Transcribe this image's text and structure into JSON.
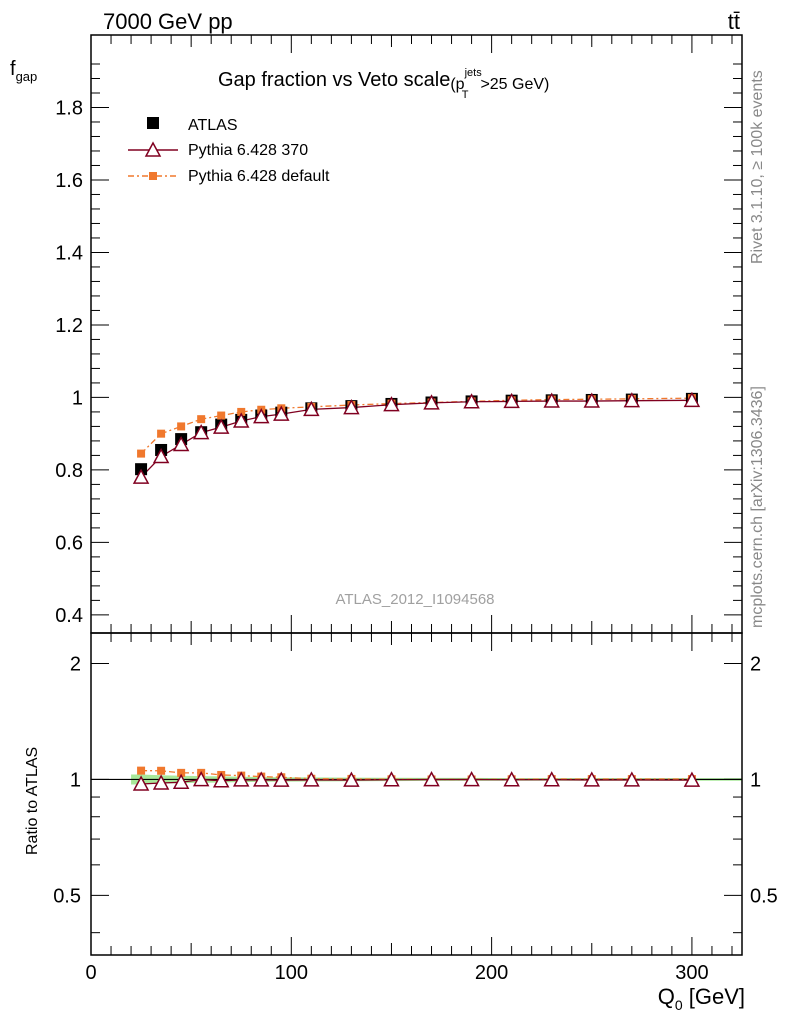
{
  "header": {
    "energy_label": "7000 GeV pp",
    "process_label": "tt̄",
    "side_rivet": "Rivet 3.1.10, ≥ 100k events",
    "side_mcplots": "mcplots.cern.ch [arXiv:1306.3436]"
  },
  "chart_data": [
    {
      "type": "scatter",
      "title": "Gap fraction vs Veto scale",
      "title_cut_prefix": "(p",
      "title_cut_sup": "jets",
      "title_cut_sub": "T",
      "title_cut_suffix": ">25 GeV)",
      "ylabel_main": "f",
      "ylabel_sub": "gap",
      "watermark": "ATLAS_2012_I1094568",
      "xlim": [
        0,
        325
      ],
      "ylim": [
        0.35,
        2.0
      ],
      "yticks": [
        "0.4",
        "0.6",
        "0.8",
        "1",
        "1.2",
        "1.4",
        "1.6",
        "1.8"
      ],
      "legend_position": "top-left",
      "x": [
        25,
        35,
        45,
        55,
        65,
        75,
        85,
        95,
        110,
        130,
        150,
        170,
        190,
        210,
        230,
        250,
        270,
        300
      ],
      "series": [
        {
          "name": "ATLAS",
          "color": "#000000",
          "marker": "filled-square",
          "values": [
            0.802,
            0.855,
            0.885,
            0.904,
            0.925,
            0.938,
            0.95,
            0.958,
            0.97,
            0.976,
            0.982,
            0.986,
            0.989,
            0.991,
            0.992,
            0.993,
            0.994,
            0.996
          ]
        },
        {
          "name": "Pythia 6.428 370",
          "color": "#800020",
          "marker": "open-triangle",
          "values": [
            0.78,
            0.837,
            0.87,
            0.903,
            0.918,
            0.935,
            0.947,
            0.954,
            0.967,
            0.972,
            0.98,
            0.985,
            0.988,
            0.989,
            0.99,
            0.99,
            0.991,
            0.992
          ]
        },
        {
          "name": "Pythia 6.428 default",
          "color": "#f0782d",
          "marker": "filled-small-square",
          "values": [
            0.845,
            0.9,
            0.92,
            0.94,
            0.95,
            0.96,
            0.966,
            0.97,
            0.974,
            0.979,
            0.983,
            0.986,
            0.989,
            0.992,
            0.994,
            0.995,
            0.996,
            0.998
          ]
        }
      ]
    },
    {
      "type": "scatter",
      "title": "",
      "ylabel": "Ratio to ATLAS",
      "xlabel_main": "Q",
      "xlabel_sub": "0",
      "xlabel_unit": " [GeV]",
      "log_y": true,
      "ylim": [
        0.35,
        2.4
      ],
      "yticks": [
        "0.5",
        "1",
        "2"
      ],
      "xticks": [
        "0",
        "100",
        "200",
        "300"
      ],
      "xlim": [
        0,
        325
      ],
      "x": [
        25,
        35,
        45,
        55,
        65,
        75,
        85,
        95,
        110,
        130,
        150,
        170,
        190,
        210,
        230,
        250,
        270,
        300
      ],
      "band_color": "#a8e89a",
      "band_half_width": [
        0.03,
        0.025,
        0.022,
        0.02,
        0.018,
        0.016,
        0.014,
        0.013,
        0.012,
        0.011,
        0.01,
        0.009,
        0.009,
        0.008,
        0.008,
        0.008,
        0.008,
        0.008
      ],
      "series": [
        {
          "name": "Pythia 6.428 370",
          "color": "#800020",
          "marker": "open-triangle",
          "values": [
            0.973,
            0.979,
            0.983,
            0.999,
            0.992,
            0.997,
            0.997,
            0.996,
            0.997,
            0.996,
            0.998,
            0.999,
            0.999,
            0.998,
            0.998,
            0.997,
            0.997,
            0.996
          ]
        },
        {
          "name": "Pythia 6.428 default",
          "color": "#f0782d",
          "marker": "filled-small-square",
          "values": [
            1.054,
            1.053,
            1.04,
            1.04,
            1.027,
            1.023,
            1.017,
            1.013,
            1.004,
            1.003,
            1.001,
            1.0,
            1.0,
            1.001,
            1.002,
            1.002,
            1.002,
            1.002
          ]
        }
      ]
    }
  ]
}
